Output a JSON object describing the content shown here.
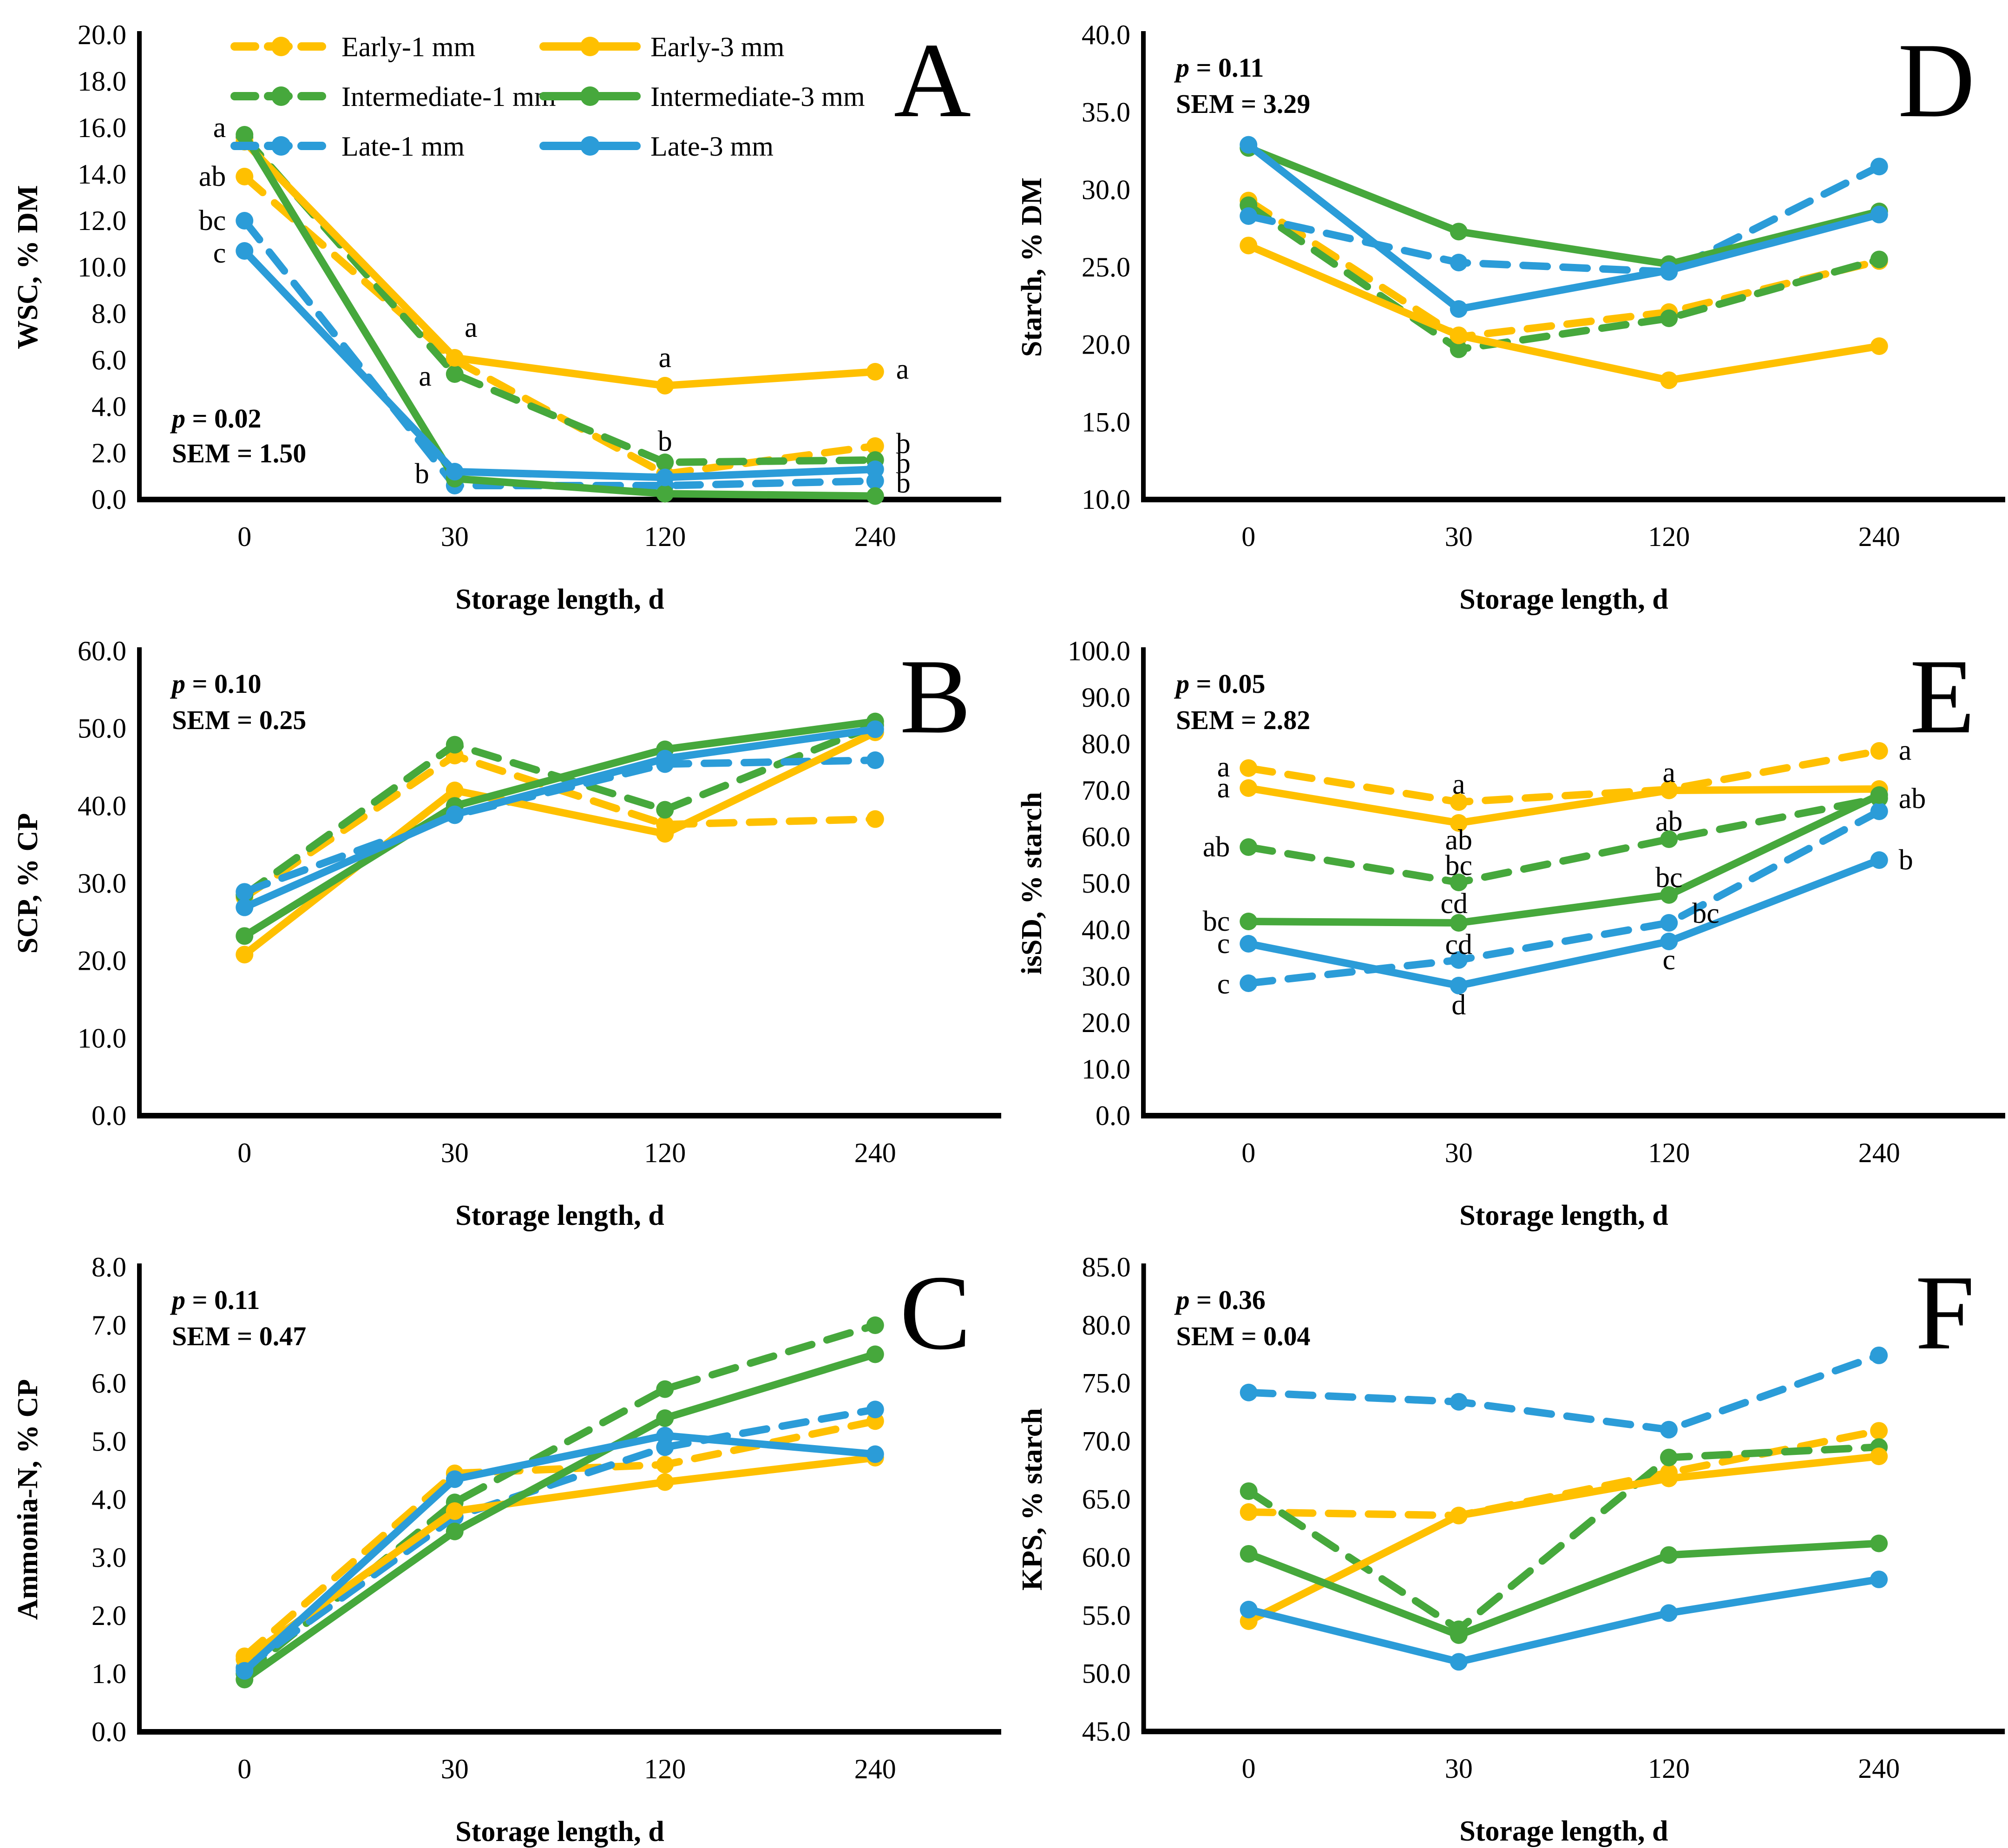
{
  "figure": {
    "background": "#ffffff",
    "xlabel": "Storage length, d",
    "x_tick_labels": [
      "0",
      "30",
      "120",
      "240"
    ]
  },
  "colors": {
    "yellow": "#FFC000",
    "green": "#46A83C",
    "blue": "#2B9CD8",
    "axis": "#000000",
    "text": "#000000"
  },
  "legend": {
    "items": [
      {
        "label": "Early-1 mm",
        "color": "yellow",
        "dashed": true,
        "col": 0,
        "row": 0
      },
      {
        "label": "Intermediate-1 mm",
        "color": "green",
        "dashed": true,
        "col": 0,
        "row": 1
      },
      {
        "label": "Late-1 mm",
        "color": "blue",
        "dashed": true,
        "col": 0,
        "row": 2
      },
      {
        "label": "Early-3 mm",
        "color": "yellow",
        "dashed": false,
        "col": 1,
        "row": 0
      },
      {
        "label": "Intermediate-3 mm",
        "color": "green",
        "dashed": false,
        "col": 1,
        "row": 1
      },
      {
        "label": "Late-3 mm",
        "color": "blue",
        "dashed": false,
        "col": 1,
        "row": 2
      }
    ]
  },
  "chart_data": [
    {
      "panel": "A",
      "letter": "A",
      "type": "line",
      "ylabel": "WSC, % DM",
      "xlabel": "Storage length, d",
      "ylim": [
        0,
        20
      ],
      "ytick": 2,
      "categories": [
        0,
        30,
        120,
        240
      ],
      "stats": {
        "p_label": "p",
        "p_value": "0.02",
        "sem_label": "SEM",
        "sem_value": "1.50",
        "position": "bottom-left"
      },
      "show_legend": true,
      "series": [
        {
          "name": "Early-1 mm",
          "color": "yellow",
          "dashed": true,
          "values": [
            13.9,
            6.0,
            1.1,
            2.3
          ]
        },
        {
          "name": "Intermediate-1 mm",
          "color": "green",
          "dashed": true,
          "values": [
            15.6,
            5.4,
            1.6,
            1.7
          ]
        },
        {
          "name": "Late-1 mm",
          "color": "blue",
          "dashed": true,
          "values": [
            12.0,
            0.6,
            0.6,
            0.8
          ]
        },
        {
          "name": "Early-3 mm",
          "color": "yellow",
          "dashed": false,
          "values": [
            15.4,
            6.1,
            4.9,
            5.5
          ]
        },
        {
          "name": "Intermediate-3 mm",
          "color": "green",
          "dashed": false,
          "values": [
            15.7,
            0.9,
            0.25,
            0.15
          ]
        },
        {
          "name": "Late-3 mm",
          "color": "blue",
          "dashed": false,
          "values": [
            10.7,
            1.2,
            0.95,
            1.3
          ]
        }
      ],
      "annotations": [
        {
          "text": "a",
          "xi": 0,
          "v": 16.0,
          "dx": -40,
          "anchor": "end"
        },
        {
          "text": "ab",
          "xi": 0,
          "v": 13.9,
          "dx": -40,
          "anchor": "end"
        },
        {
          "text": "bc",
          "xi": 0,
          "v": 12.0,
          "dx": -40,
          "anchor": "end"
        },
        {
          "text": "c",
          "xi": 0,
          "v": 10.6,
          "dx": -40,
          "anchor": "end"
        },
        {
          "text": "a",
          "xi": 1,
          "v": 7.4,
          "dx": 35,
          "anchor": "middle"
        },
        {
          "text": "a",
          "xi": 1,
          "v": 5.3,
          "dx": -50,
          "anchor": "end"
        },
        {
          "text": "b",
          "xi": 1,
          "v": 1.1,
          "dx": -55,
          "anchor": "end"
        },
        {
          "text": "a",
          "xi": 2,
          "v": 6.1,
          "dx": 0,
          "anchor": "middle"
        },
        {
          "text": "b",
          "xi": 2,
          "v": 2.5,
          "dx": 0,
          "anchor": "middle"
        },
        {
          "text": "a",
          "xi": 3,
          "v": 5.6,
          "dx": 45,
          "anchor": "start"
        },
        {
          "text": "b",
          "xi": 3,
          "v": 2.4,
          "dx": 45,
          "anchor": "start"
        },
        {
          "text": "b",
          "xi": 3,
          "v": 1.55,
          "dx": 45,
          "anchor": "start"
        },
        {
          "text": "b",
          "xi": 3,
          "v": 0.7,
          "dx": 45,
          "anchor": "start"
        }
      ]
    },
    {
      "panel": "D",
      "letter": "D",
      "type": "line",
      "ylabel": "Starch, % DM",
      "xlabel": "Storage length, d",
      "ylim": [
        10,
        40
      ],
      "ytick": 5,
      "categories": [
        0,
        30,
        120,
        240
      ],
      "stats": {
        "p_label": "p",
        "p_value": "0.11",
        "sem_label": "SEM",
        "sem_value": "3.29",
        "position": "top-left"
      },
      "show_legend": false,
      "series": [
        {
          "name": "Early-1 mm",
          "color": "yellow",
          "dashed": true,
          "values": [
            29.3,
            20.5,
            22.1,
            25.4
          ]
        },
        {
          "name": "Intermediate-1 mm",
          "color": "green",
          "dashed": true,
          "values": [
            29.0,
            19.7,
            21.7,
            25.5
          ]
        },
        {
          "name": "Late-1 mm",
          "color": "blue",
          "dashed": true,
          "values": [
            28.3,
            25.3,
            24.7,
            31.5
          ]
        },
        {
          "name": "Early-3 mm",
          "color": "yellow",
          "dashed": false,
          "values": [
            26.4,
            20.6,
            17.7,
            19.9
          ]
        },
        {
          "name": "Intermediate-3 mm",
          "color": "green",
          "dashed": false,
          "values": [
            32.7,
            27.3,
            25.2,
            28.6
          ]
        },
        {
          "name": "Late-3 mm",
          "color": "blue",
          "dashed": false,
          "values": [
            32.9,
            22.3,
            24.8,
            28.4
          ]
        }
      ],
      "annotations": []
    },
    {
      "panel": "B",
      "letter": "B",
      "type": "line",
      "ylabel": "SCP, % CP",
      "xlabel": "Storage length, d",
      "ylim": [
        0,
        60
      ],
      "ytick": 10,
      "categories": [
        0,
        30,
        120,
        240
      ],
      "stats": {
        "p_label": "p",
        "p_value": "0.10",
        "sem_label": "SEM",
        "sem_value": "0.25",
        "position": "top-left"
      },
      "show_legend": false,
      "series": [
        {
          "name": "Early-1 mm",
          "color": "yellow",
          "dashed": true,
          "values": [
            28.2,
            46.5,
            37.6,
            38.3
          ]
        },
        {
          "name": "Intermediate-1 mm",
          "color": "green",
          "dashed": true,
          "values": [
            28.5,
            47.9,
            39.5,
            50.4
          ]
        },
        {
          "name": "Late-1 mm",
          "color": "blue",
          "dashed": true,
          "values": [
            28.9,
            38.8,
            45.4,
            45.9
          ]
        },
        {
          "name": "Early-3 mm",
          "color": "yellow",
          "dashed": false,
          "values": [
            20.8,
            42.0,
            36.4,
            49.5
          ]
        },
        {
          "name": "Intermediate-3 mm",
          "color": "green",
          "dashed": false,
          "values": [
            23.2,
            40.0,
            47.3,
            50.9
          ]
        },
        {
          "name": "Late-3 mm",
          "color": "blue",
          "dashed": false,
          "values": [
            26.9,
            38.9,
            46.1,
            49.9
          ]
        }
      ],
      "annotations": []
    },
    {
      "panel": "E",
      "letter": "E",
      "type": "line",
      "ylabel": "isSD, % starch",
      "xlabel": "Storage length, d",
      "ylim": [
        0,
        100
      ],
      "ytick": 10,
      "categories": [
        0,
        30,
        120,
        240
      ],
      "stats": {
        "p_label": "p",
        "p_value": "0.05",
        "sem_label": "SEM",
        "sem_value": "2.82",
        "position": "top-left"
      },
      "show_legend": false,
      "series": [
        {
          "name": "Early-1 mm",
          "color": "yellow",
          "dashed": true,
          "values": [
            74.8,
            67.5,
            70.2,
            78.5
          ]
        },
        {
          "name": "Intermediate-1 mm",
          "color": "green",
          "dashed": true,
          "values": [
            57.8,
            50.2,
            59.5,
            68.3
          ]
        },
        {
          "name": "Late-1 mm",
          "color": "blue",
          "dashed": true,
          "values": [
            28.5,
            33.5,
            41.5,
            65.5
          ]
        },
        {
          "name": "Early-3 mm",
          "color": "yellow",
          "dashed": false,
          "values": [
            70.5,
            63.0,
            70.0,
            70.3
          ]
        },
        {
          "name": "Intermediate-3 mm",
          "color": "green",
          "dashed": false,
          "values": [
            41.8,
            41.5,
            47.5,
            69.0
          ]
        },
        {
          "name": "Late-3 mm",
          "color": "blue",
          "dashed": false,
          "values": [
            37.0,
            28.0,
            37.5,
            55.0
          ]
        }
      ],
      "annotations": [
        {
          "text": "a",
          "xi": 0,
          "v": 75.0,
          "dx": -40,
          "anchor": "end"
        },
        {
          "text": "a",
          "xi": 0,
          "v": 70.5,
          "dx": -40,
          "anchor": "end"
        },
        {
          "text": "ab",
          "xi": 0,
          "v": 57.8,
          "dx": -40,
          "anchor": "end"
        },
        {
          "text": "bc",
          "xi": 0,
          "v": 41.8,
          "dx": -40,
          "anchor": "end"
        },
        {
          "text": "c",
          "xi": 0,
          "v": 37.0,
          "dx": -40,
          "anchor": "end"
        },
        {
          "text": "c",
          "xi": 0,
          "v": 28.3,
          "dx": -40,
          "anchor": "end"
        },
        {
          "text": "a",
          "xi": 1,
          "v": 71.3,
          "dx": 0,
          "anchor": "middle"
        },
        {
          "text": "ab",
          "xi": 1,
          "v": 59.3,
          "dx": 0,
          "anchor": "middle"
        },
        {
          "text": "bc",
          "xi": 1,
          "v": 53.8,
          "dx": 0,
          "anchor": "middle"
        },
        {
          "text": "cd",
          "xi": 1,
          "v": 45.6,
          "dx": -10,
          "anchor": "middle"
        },
        {
          "text": "cd",
          "xi": 1,
          "v": 36.8,
          "dx": 0,
          "anchor": "middle"
        },
        {
          "text": "d",
          "xi": 1,
          "v": 23.8,
          "dx": 0,
          "anchor": "middle"
        },
        {
          "text": "a",
          "xi": 2,
          "v": 73.8,
          "dx": 0,
          "anchor": "middle"
        },
        {
          "text": "ab",
          "xi": 2,
          "v": 63.3,
          "dx": 0,
          "anchor": "middle"
        },
        {
          "text": "bc",
          "xi": 2,
          "v": 51.2,
          "dx": 0,
          "anchor": "middle"
        },
        {
          "text": "bc",
          "xi": 2,
          "v": 43.5,
          "dx": 50,
          "anchor": "start"
        },
        {
          "text": "c",
          "xi": 2,
          "v": 33.5,
          "dx": 0,
          "anchor": "middle"
        },
        {
          "text": "a",
          "xi": 3,
          "v": 78.6,
          "dx": 42,
          "anchor": "start"
        },
        {
          "text": "ab",
          "xi": 3,
          "v": 68.2,
          "dx": 42,
          "anchor": "start"
        },
        {
          "text": "b",
          "xi": 3,
          "v": 55.0,
          "dx": 42,
          "anchor": "start"
        }
      ]
    },
    {
      "panel": "C",
      "letter": "C",
      "type": "line",
      "ylabel": "Ammonia-N, % CP",
      "xlabel": "Storage length, d",
      "ylim": [
        0,
        8
      ],
      "ytick": 1,
      "categories": [
        0,
        30,
        120,
        240
      ],
      "stats": {
        "p_label": "p",
        "p_value": "0.11",
        "sem_label": "SEM",
        "sem_value": "0.47",
        "position": "top-left"
      },
      "show_legend": false,
      "series": [
        {
          "name": "Early-1 mm",
          "color": "yellow",
          "dashed": true,
          "values": [
            1.3,
            4.45,
            4.6,
            5.35
          ]
        },
        {
          "name": "Intermediate-1 mm",
          "color": "green",
          "dashed": true,
          "values": [
            1.0,
            3.95,
            5.9,
            7.0
          ]
        },
        {
          "name": "Late-1 mm",
          "color": "blue",
          "dashed": true,
          "values": [
            1.1,
            3.7,
            4.9,
            5.55
          ]
        },
        {
          "name": "Early-3 mm",
          "color": "yellow",
          "dashed": false,
          "values": [
            1.25,
            3.8,
            4.3,
            4.72
          ]
        },
        {
          "name": "Intermediate-3 mm",
          "color": "green",
          "dashed": false,
          "values": [
            0.9,
            3.45,
            5.4,
            6.5
          ]
        },
        {
          "name": "Late-3 mm",
          "color": "blue",
          "dashed": false,
          "values": [
            1.05,
            4.35,
            5.1,
            4.78
          ]
        }
      ],
      "annotations": []
    },
    {
      "panel": "F",
      "letter": "F",
      "type": "line",
      "ylabel": "KPS, % starch",
      "xlabel": "Storage length, d",
      "ylim": [
        45,
        85
      ],
      "ytick": 5,
      "categories": [
        0,
        30,
        120,
        240
      ],
      "stats": {
        "p_label": "p",
        "p_value": "0.36",
        "sem_label": "SEM",
        "sem_value": "0.04",
        "position": "top-left"
      },
      "show_legend": false,
      "series": [
        {
          "name": "Early-1 mm",
          "color": "yellow",
          "dashed": true,
          "values": [
            63.9,
            63.6,
            67.3,
            70.9
          ]
        },
        {
          "name": "Intermediate-1 mm",
          "color": "green",
          "dashed": true,
          "values": [
            65.7,
            53.8,
            68.6,
            69.5
          ]
        },
        {
          "name": "Late-1 mm",
          "color": "blue",
          "dashed": true,
          "values": [
            74.2,
            73.4,
            71.0,
            77.4
          ]
        },
        {
          "name": "Early-3 mm",
          "color": "yellow",
          "dashed": false,
          "values": [
            54.5,
            63.6,
            66.8,
            68.7
          ]
        },
        {
          "name": "Intermediate-3 mm",
          "color": "green",
          "dashed": false,
          "values": [
            60.3,
            53.3,
            60.2,
            61.2
          ]
        },
        {
          "name": "Late-3 mm",
          "color": "blue",
          "dashed": false,
          "values": [
            55.5,
            51.0,
            55.2,
            58.1
          ]
        }
      ],
      "annotations": []
    }
  ]
}
